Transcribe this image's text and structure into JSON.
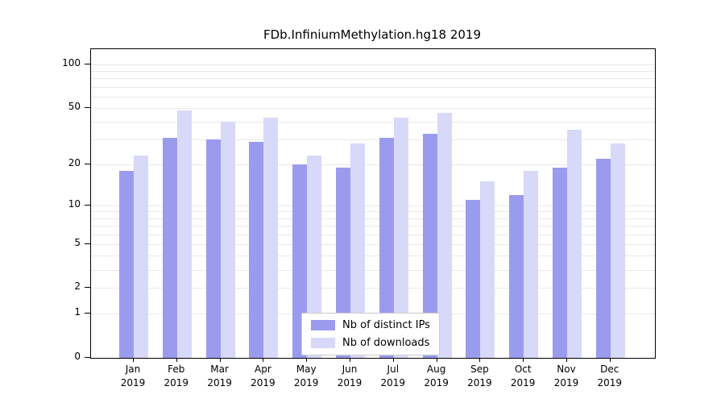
{
  "chart_data": {
    "type": "bar",
    "title": "FDb.InfiniumMethylation.hg18 2019",
    "categories": [
      "Jan",
      "Feb",
      "Mar",
      "Apr",
      "May",
      "Jun",
      "Jul",
      "Aug",
      "Sep",
      "Oct",
      "Nov",
      "Dec"
    ],
    "year": "2019",
    "series": [
      {
        "name": "Nb of distinct IPs",
        "color": "#9b9bee",
        "values": [
          18,
          31,
          30,
          29,
          20,
          19,
          31,
          33,
          11,
          12,
          19,
          22
        ]
      },
      {
        "name": "Nb of downloads",
        "color": "#d8d8f9",
        "values": [
          23,
          48,
          40,
          43,
          23,
          28,
          43,
          46,
          15,
          18,
          35,
          28
        ]
      }
    ],
    "y_ticks": [
      0,
      1,
      2,
      5,
      10,
      20,
      50,
      100
    ],
    "grid_values": [
      1,
      2,
      3,
      4,
      5,
      6,
      7,
      8,
      9,
      10,
      20,
      30,
      40,
      50,
      60,
      70,
      80,
      90,
      100
    ],
    "scale": "log1p",
    "ylim": [
      0,
      100
    ],
    "xlabel": "",
    "ylabel": "",
    "grid": true,
    "legend_position": "bottom-center",
    "grid_color": "#e9e9e9",
    "axis_color": "#000000"
  }
}
